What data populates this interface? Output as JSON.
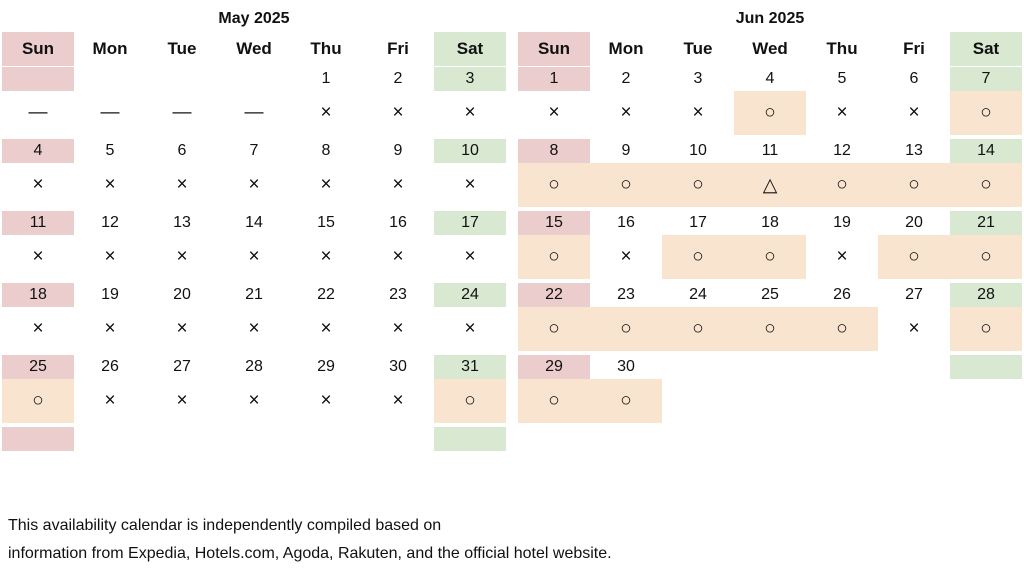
{
  "calendars": [
    {
      "title": "May 2025",
      "weekdays": [
        "Sun",
        "Mon",
        "Tue",
        "Wed",
        "Thu",
        "Fri",
        "Sat"
      ],
      "weeks": [
        {
          "dates": [
            "",
            "",
            "",
            "",
            "1",
            "2",
            "3"
          ],
          "status": [
            "—",
            "—",
            "—",
            "—",
            "×",
            "×",
            "×"
          ]
        },
        {
          "dates": [
            "4",
            "5",
            "6",
            "7",
            "8",
            "9",
            "10"
          ],
          "status": [
            "×",
            "×",
            "×",
            "×",
            "×",
            "×",
            "×"
          ]
        },
        {
          "dates": [
            "11",
            "12",
            "13",
            "14",
            "15",
            "16",
            "17"
          ],
          "status": [
            "×",
            "×",
            "×",
            "×",
            "×",
            "×",
            "×"
          ]
        },
        {
          "dates": [
            "18",
            "19",
            "20",
            "21",
            "22",
            "23",
            "24"
          ],
          "status": [
            "×",
            "×",
            "×",
            "×",
            "×",
            "×",
            "×"
          ]
        },
        {
          "dates": [
            "25",
            "26",
            "27",
            "28",
            "29",
            "30",
            "31"
          ],
          "status": [
            "○",
            "×",
            "×",
            "×",
            "×",
            "×",
            "○"
          ]
        },
        {
          "dates": [
            "",
            "",
            "",
            "",
            "",
            "",
            ""
          ],
          "status": [
            "",
            "",
            "",
            "",
            "",
            "",
            ""
          ]
        }
      ]
    },
    {
      "title": "Jun 2025",
      "weekdays": [
        "Sun",
        "Mon",
        "Tue",
        "Wed",
        "Thu",
        "Fri",
        "Sat"
      ],
      "weeks": [
        {
          "dates": [
            "1",
            "2",
            "3",
            "4",
            "5",
            "6",
            "7"
          ],
          "status": [
            "×",
            "×",
            "×",
            "○",
            "×",
            "×",
            "○"
          ]
        },
        {
          "dates": [
            "8",
            "9",
            "10",
            "11",
            "12",
            "13",
            "14"
          ],
          "status": [
            "○",
            "○",
            "○",
            "△",
            "○",
            "○",
            "○"
          ]
        },
        {
          "dates": [
            "15",
            "16",
            "17",
            "18",
            "19",
            "20",
            "21"
          ],
          "status": [
            "○",
            "×",
            "○",
            "○",
            "×",
            "○",
            "○"
          ]
        },
        {
          "dates": [
            "22",
            "23",
            "24",
            "25",
            "26",
            "27",
            "28"
          ],
          "status": [
            "○",
            "○",
            "○",
            "○",
            "○",
            "×",
            "○"
          ]
        },
        {
          "dates": [
            "29",
            "30",
            "",
            "",
            "",
            "",
            ""
          ],
          "status": [
            "○",
            "○",
            "",
            "",
            "",
            "",
            ""
          ]
        }
      ]
    }
  ],
  "footer": {
    "line1": "This availability calendar is independently compiled based on",
    "line2": "information from Expedia, Hotels.com, Agoda, Rakuten, and the official hotel website."
  },
  "colors": {
    "sunday": "#ebcdcd",
    "saturday": "#d9e8d1",
    "available": "#f9e4cf"
  }
}
